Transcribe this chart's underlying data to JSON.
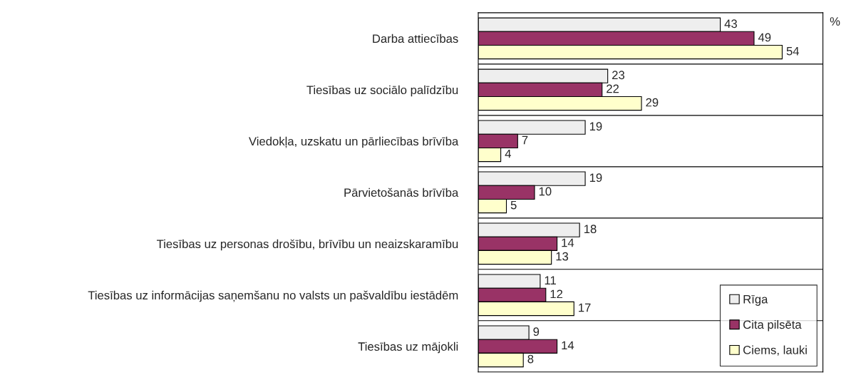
{
  "chart_data": {
    "type": "bar",
    "orientation": "horizontal",
    "categories": [
      "Darba attiecības",
      "Tiesības uz sociālo palīdzību",
      "Viedokļa, uzskatu un pārliecības brīvība",
      "Pārvietošanās brīvība",
      "Tiesības uz personas drošību, brīvību un neaizskaramību",
      "Tiesības uz informācijas saņemšanu no valsts un pašvaldību iestādēm",
      "Tiesības uz mājokli"
    ],
    "series": [
      {
        "name": "Rīga",
        "color": "#eeeeee",
        "values": [
          43,
          23,
          19,
          19,
          18,
          11,
          9
        ]
      },
      {
        "name": "Cita pilsēta",
        "color": "#993366",
        "values": [
          49,
          22,
          7,
          10,
          14,
          12,
          14
        ]
      },
      {
        "name": "Ciems, lauki",
        "color": "#ffffcc",
        "values": [
          54,
          29,
          4,
          5,
          13,
          17,
          8
        ]
      }
    ],
    "data_labels": true,
    "grid": "y",
    "legend": "bottom right",
    "tick_labels": "y",
    "annotations": [
      "%"
    ]
  }
}
